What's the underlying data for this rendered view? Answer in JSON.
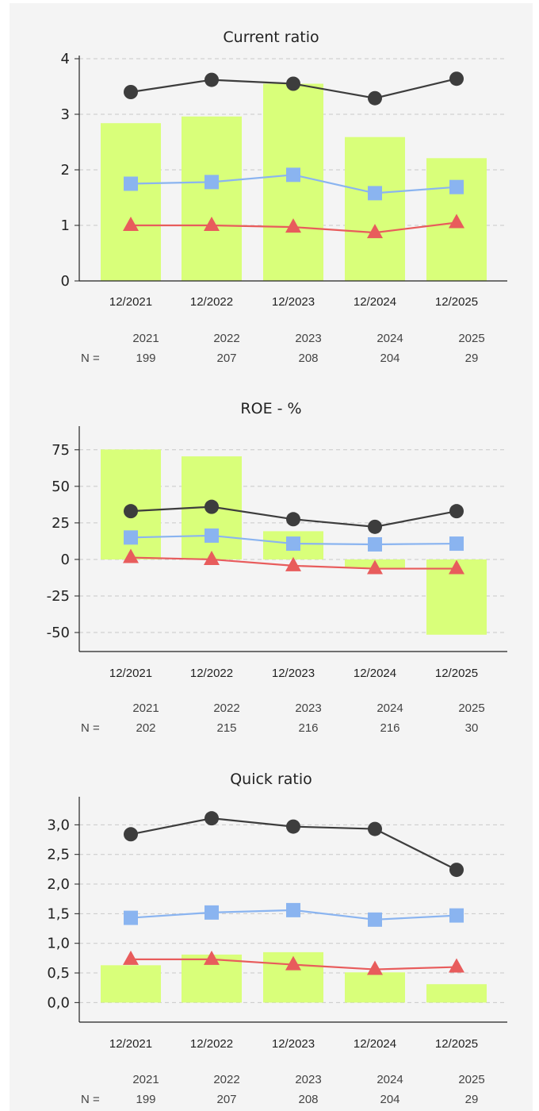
{
  "colors": {
    "bar": "#d9ff7a",
    "upper": "#3d3d3d",
    "median": "#8ab4f0",
    "lower": "#e85c5c",
    "grid": "#c8c8c8",
    "axis": "#222222"
  },
  "n_label": "N =",
  "chart_data": [
    {
      "type": "bar",
      "title": "Current ratio",
      "categories": [
        "12/2021",
        "12/2022",
        "12/2023",
        "12/2024",
        "12/2025"
      ],
      "years": [
        "2021",
        "2022",
        "2023",
        "2024",
        "2025"
      ],
      "n": [
        "199",
        "207",
        "208",
        "204",
        "29"
      ],
      "ylim": [
        0,
        4
      ],
      "yticks": [
        0,
        1,
        2,
        3,
        4
      ],
      "ytick_labels": [
        "0",
        "1",
        "2",
        "3",
        "4"
      ],
      "grid": true,
      "series": [
        {
          "kind": "bar",
          "values": [
            2.84,
            2.96,
            3.55,
            2.59,
            2.21
          ]
        },
        {
          "kind": "line",
          "marker": "circle",
          "color_key": "upper",
          "values": [
            3.4,
            3.62,
            3.55,
            3.29,
            3.64
          ]
        },
        {
          "kind": "line",
          "marker": "square",
          "color_key": "median",
          "values": [
            1.75,
            1.78,
            1.91,
            1.58,
            1.69
          ]
        },
        {
          "kind": "line",
          "marker": "triangle",
          "color_key": "lower",
          "values": [
            1.0,
            1.0,
            0.97,
            0.87,
            1.05
          ]
        }
      ]
    },
    {
      "type": "bar",
      "title": "ROE - %",
      "categories": [
        "12/2021",
        "12/2022",
        "12/2023",
        "12/2024",
        "12/2025"
      ],
      "years": [
        "2021",
        "2022",
        "2023",
        "2024",
        "2025"
      ],
      "n": [
        "202",
        "215",
        "216",
        "216",
        "30"
      ],
      "ylim": [
        -63,
        89
      ],
      "yticks": [
        -50,
        -25,
        0,
        25,
        50,
        75
      ],
      "ytick_labels": [
        "-50",
        "-25",
        "0",
        "25",
        "50",
        "75"
      ],
      "grid": true,
      "series": [
        {
          "kind": "bar",
          "values": [
            75.2,
            70.5,
            19.3,
            -6.0,
            -51.5
          ]
        },
        {
          "kind": "line",
          "marker": "circle",
          "color_key": "upper",
          "values": [
            33.0,
            36.0,
            27.5,
            22.3,
            33.0
          ]
        },
        {
          "kind": "line",
          "marker": "square",
          "color_key": "median",
          "values": [
            15.0,
            16.3,
            10.8,
            10.3,
            10.8
          ]
        },
        {
          "kind": "line",
          "marker": "triangle",
          "color_key": "lower",
          "values": [
            1.3,
            0.0,
            -4.3,
            -6.3,
            -6.3
          ]
        }
      ]
    },
    {
      "type": "bar",
      "title": "Quick ratio",
      "categories": [
        "12/2021",
        "12/2022",
        "12/2023",
        "12/2024",
        "12/2025"
      ],
      "years": [
        "2021",
        "2022",
        "2023",
        "2024",
        "2025"
      ],
      "n": [
        "199",
        "207",
        "208",
        "204",
        "29"
      ],
      "ylim": [
        -0.33,
        3.42
      ],
      "yticks": [
        0,
        0.5,
        1,
        1.5,
        2,
        2.5,
        3
      ],
      "ytick_labels": [
        "0,0",
        "0,5",
        "1,0",
        "1,5",
        "2,0",
        "2,5",
        "3,0"
      ],
      "grid": true,
      "series": [
        {
          "kind": "bar",
          "values": [
            0.63,
            0.81,
            0.85,
            0.51,
            0.31
          ]
        },
        {
          "kind": "line",
          "marker": "circle",
          "color_key": "upper",
          "values": [
            2.84,
            3.11,
            2.97,
            2.93,
            2.24
          ]
        },
        {
          "kind": "line",
          "marker": "square",
          "color_key": "median",
          "values": [
            1.43,
            1.52,
            1.56,
            1.4,
            1.47
          ]
        },
        {
          "kind": "line",
          "marker": "triangle",
          "color_key": "lower",
          "values": [
            0.73,
            0.73,
            0.64,
            0.56,
            0.6
          ]
        }
      ]
    }
  ]
}
